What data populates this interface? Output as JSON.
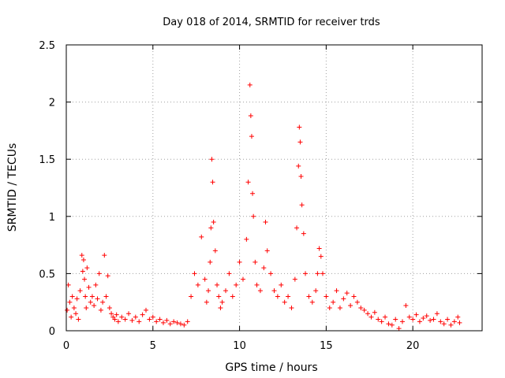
{
  "chart_data": {
    "type": "scatter",
    "title": "Day 018 of 2014, SRMTID for receiver trds",
    "xlabel": "GPS time / hours",
    "ylabel": "SRMTID / TECUs",
    "xlim": [
      0,
      24
    ],
    "ylim": [
      0,
      2.5
    ],
    "xticks": [
      0,
      5,
      10,
      15,
      20
    ],
    "yticks": [
      0,
      0.5,
      1,
      1.5,
      2,
      2.5
    ],
    "xtick_labels": [
      "0",
      "5",
      "10",
      "15",
      "20"
    ],
    "ytick_labels": [
      "0",
      "0.5",
      "1",
      "1.5",
      "2",
      "2.5"
    ],
    "grid": true,
    "marker": "+",
    "color": "#ff0000",
    "series": [
      {
        "name": "SRMTID",
        "x": [
          0.05,
          0.12,
          0.2,
          0.28,
          0.35,
          0.45,
          0.55,
          0.62,
          0.7,
          0.8,
          0.9,
          0.95,
          1.0,
          1.05,
          1.1,
          1.15,
          1.2,
          1.3,
          1.4,
          1.5,
          1.6,
          1.7,
          1.8,
          1.9,
          2.0,
          2.1,
          2.2,
          2.3,
          2.4,
          2.5,
          2.6,
          2.7,
          2.8,
          2.9,
          3.0,
          3.2,
          3.4,
          3.6,
          3.8,
          4.0,
          4.2,
          4.4,
          4.6,
          4.8,
          5.0,
          5.2,
          5.4,
          5.6,
          5.8,
          6.0,
          6.2,
          6.4,
          6.6,
          6.8,
          7.0,
          7.2,
          7.4,
          7.6,
          7.8,
          8.0,
          8.1,
          8.2,
          8.3,
          8.35,
          8.4,
          8.45,
          8.5,
          8.6,
          8.7,
          8.8,
          8.9,
          9.0,
          9.2,
          9.4,
          9.6,
          9.8,
          10.0,
          10.2,
          10.4,
          10.5,
          10.6,
          10.65,
          10.7,
          10.75,
          10.8,
          10.9,
          11.0,
          11.2,
          11.4,
          11.5,
          11.6,
          11.8,
          12.0,
          12.2,
          12.4,
          12.6,
          12.8,
          13.0,
          13.2,
          13.3,
          13.4,
          13.45,
          13.5,
          13.55,
          13.6,
          13.7,
          13.8,
          14.0,
          14.2,
          14.4,
          14.5,
          14.6,
          14.7,
          14.8,
          15.0,
          15.2,
          15.4,
          15.6,
          15.8,
          16.0,
          16.2,
          16.4,
          16.6,
          16.8,
          17.0,
          17.2,
          17.4,
          17.6,
          17.8,
          18.0,
          18.2,
          18.4,
          18.6,
          18.8,
          19.0,
          19.2,
          19.4,
          19.6,
          19.8,
          20.0,
          20.2,
          20.4,
          20.6,
          20.8,
          21.0,
          21.2,
          21.4,
          21.6,
          21.8,
          22.0,
          22.2,
          22.4,
          22.6,
          22.7
        ],
        "y": [
          0.18,
          0.4,
          0.25,
          0.12,
          0.3,
          0.2,
          0.15,
          0.28,
          0.1,
          0.35,
          0.66,
          0.52,
          0.62,
          0.45,
          0.3,
          0.2,
          0.55,
          0.38,
          0.25,
          0.3,
          0.22,
          0.4,
          0.28,
          0.5,
          0.18,
          0.25,
          0.66,
          0.3,
          0.48,
          0.2,
          0.15,
          0.12,
          0.1,
          0.14,
          0.08,
          0.12,
          0.1,
          0.15,
          0.09,
          0.12,
          0.08,
          0.14,
          0.18,
          0.1,
          0.12,
          0.08,
          0.1,
          0.07,
          0.09,
          0.06,
          0.08,
          0.07,
          0.06,
          0.05,
          0.08,
          0.3,
          0.5,
          0.4,
          0.82,
          0.45,
          0.25,
          0.35,
          0.6,
          0.9,
          1.5,
          1.3,
          0.95,
          0.7,
          0.4,
          0.3,
          0.2,
          0.25,
          0.35,
          0.5,
          0.3,
          0.4,
          0.6,
          0.45,
          0.8,
          1.3,
          2.15,
          1.88,
          1.7,
          1.2,
          1.0,
          0.6,
          0.4,
          0.35,
          0.55,
          0.95,
          0.7,
          0.5,
          0.35,
          0.3,
          0.4,
          0.25,
          0.3,
          0.2,
          0.45,
          0.9,
          1.44,
          1.78,
          1.65,
          1.35,
          1.1,
          0.85,
          0.5,
          0.3,
          0.25,
          0.35,
          0.5,
          0.72,
          0.65,
          0.5,
          0.3,
          0.2,
          0.25,
          0.35,
          0.2,
          0.28,
          0.33,
          0.22,
          0.3,
          0.25,
          0.2,
          0.18,
          0.15,
          0.12,
          0.16,
          0.1,
          0.08,
          0.12,
          0.06,
          0.05,
          0.1,
          0.02,
          0.08,
          0.22,
          0.12,
          0.1,
          0.14,
          0.08,
          0.11,
          0.13,
          0.09,
          0.1,
          0.15,
          0.08,
          0.06,
          0.1,
          0.05,
          0.08,
          0.12,
          0.07
        ]
      }
    ]
  }
}
